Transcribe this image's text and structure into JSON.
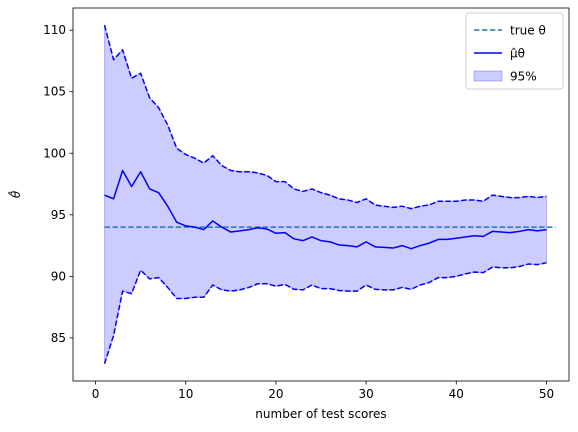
{
  "chart_data": {
    "type": "line",
    "title": "",
    "xlabel": "number of test scores",
    "ylabel": "θ̂",
    "xlim": [
      -2.5,
      52.5
    ],
    "ylim": [
      81.5,
      111.8
    ],
    "xticks": [
      0,
      10,
      20,
      30,
      40,
      50
    ],
    "yticks": [
      85,
      90,
      95,
      100,
      105,
      110
    ],
    "grid": false,
    "legend_placement": "top-right",
    "colors": {
      "true_line": "#1f77b4",
      "estimate": "#0000ff",
      "band": "#0000ff"
    },
    "x": [
      1,
      2,
      3,
      4,
      5,
      6,
      7,
      8,
      9,
      10,
      11,
      12,
      13,
      14,
      15,
      16,
      17,
      18,
      19,
      20,
      21,
      22,
      23,
      24,
      25,
      26,
      27,
      28,
      29,
      30,
      31,
      32,
      33,
      34,
      35,
      36,
      37,
      38,
      39,
      40,
      41,
      42,
      43,
      44,
      45,
      46,
      47,
      48,
      49,
      50
    ],
    "true_theta": {
      "value": 94.0,
      "x_range": [
        1,
        51
      ]
    },
    "series": [
      {
        "name": "μ̂θ",
        "values": [
          96.6,
          96.3,
          98.6,
          97.3,
          98.5,
          97.1,
          96.8,
          95.7,
          94.4,
          94.1,
          94.0,
          93.8,
          94.5,
          94.0,
          93.6,
          93.7,
          93.8,
          93.95,
          93.85,
          93.5,
          93.55,
          93.05,
          92.9,
          93.2,
          92.9,
          92.8,
          92.55,
          92.5,
          92.4,
          92.8,
          92.4,
          92.35,
          92.3,
          92.5,
          92.25,
          92.5,
          92.7,
          93.0,
          93.0,
          93.1,
          93.2,
          93.3,
          93.25,
          93.65,
          93.6,
          93.55,
          93.65,
          93.8,
          93.7,
          93.8
        ]
      },
      {
        "name": "upper",
        "values": [
          110.4,
          107.6,
          108.4,
          106.1,
          106.5,
          104.5,
          103.7,
          102.3,
          100.4,
          99.9,
          99.6,
          99.2,
          99.8,
          99.0,
          98.6,
          98.5,
          98.5,
          98.4,
          98.2,
          97.7,
          97.7,
          97.1,
          96.9,
          97.1,
          96.8,
          96.6,
          96.3,
          96.2,
          96.0,
          96.3,
          95.8,
          95.7,
          95.6,
          95.7,
          95.5,
          95.7,
          95.8,
          96.1,
          96.1,
          96.1,
          96.2,
          96.2,
          96.1,
          96.6,
          96.5,
          96.4,
          96.4,
          96.5,
          96.4,
          96.5
        ]
      },
      {
        "name": "lower",
        "values": [
          82.9,
          85.2,
          88.8,
          88.6,
          90.5,
          89.8,
          89.9,
          89.1,
          88.2,
          88.2,
          88.3,
          88.3,
          89.3,
          88.9,
          88.8,
          88.9,
          89.1,
          89.4,
          89.4,
          89.2,
          89.35,
          88.95,
          88.9,
          89.3,
          89.0,
          89.0,
          88.85,
          88.8,
          88.8,
          89.3,
          88.95,
          88.9,
          88.9,
          89.1,
          88.95,
          89.3,
          89.5,
          89.9,
          89.9,
          90.0,
          90.2,
          90.35,
          90.3,
          90.75,
          90.7,
          90.7,
          90.8,
          91.0,
          90.95,
          91.1
        ]
      }
    ],
    "legend": [
      {
        "key": "true",
        "label": "true θ"
      },
      {
        "key": "mu",
        "label": "μ̂θ"
      },
      {
        "key": "band",
        "label": "95%"
      }
    ]
  }
}
